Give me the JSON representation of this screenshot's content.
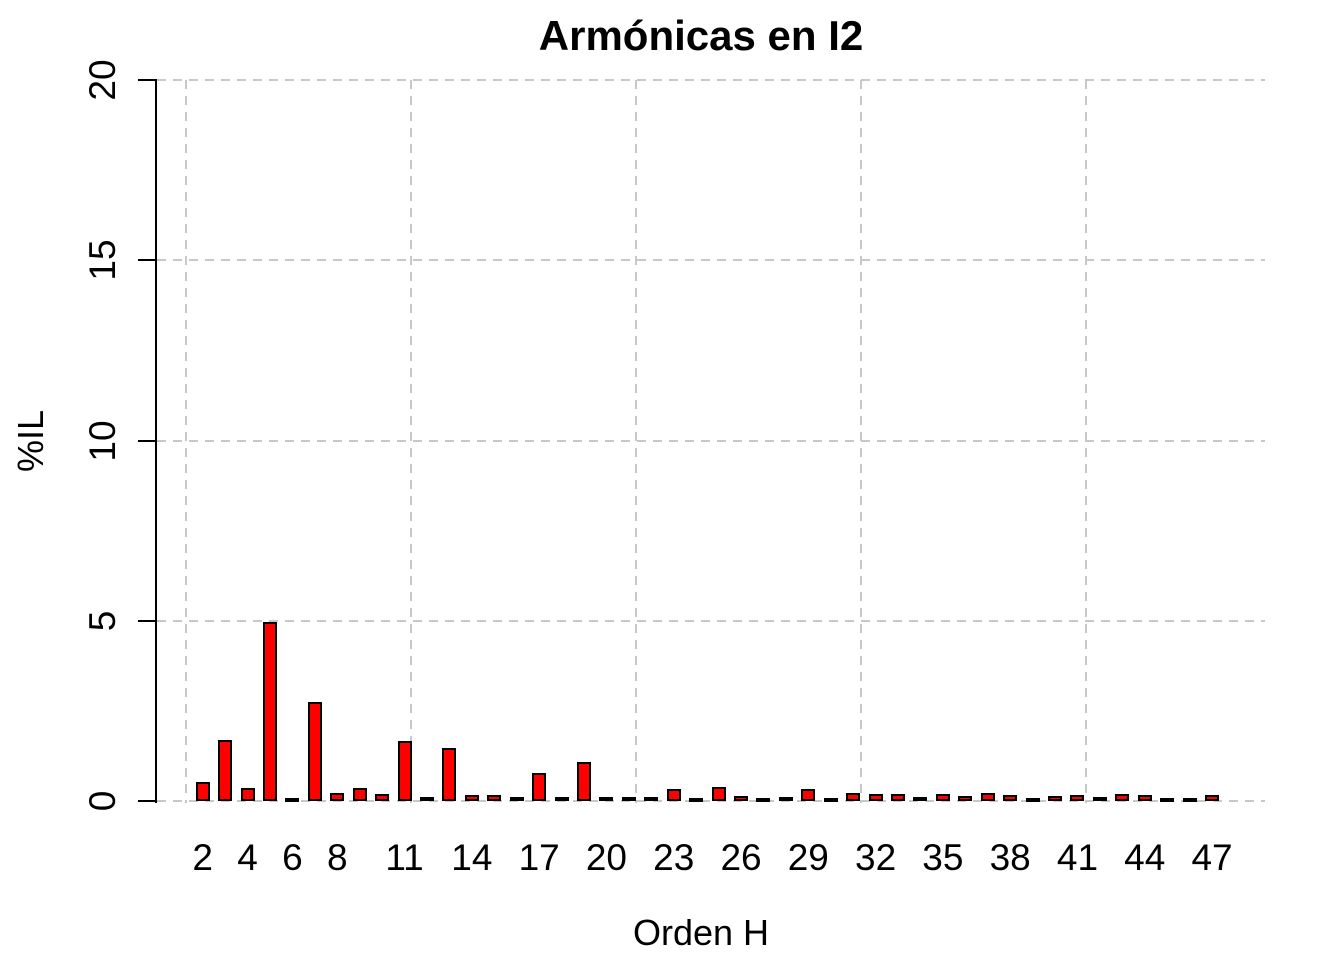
{
  "figure": {
    "title": "Armónicas en I2",
    "xlabel": "Orden H",
    "ylabel": "%IL"
  },
  "chart_data": {
    "type": "bar",
    "title": "Armónicas en I2",
    "xlabel": "Orden H",
    "ylabel": "%IL",
    "ylim": [
      0,
      20
    ],
    "yticks": [
      0,
      5,
      10,
      15,
      20
    ],
    "xticks_shown": [
      2,
      4,
      6,
      8,
      11,
      14,
      17,
      20,
      23,
      26,
      29,
      32,
      35,
      38,
      41,
      44,
      47
    ],
    "categories": [
      2,
      3,
      4,
      5,
      6,
      7,
      8,
      9,
      10,
      11,
      12,
      13,
      14,
      15,
      16,
      17,
      18,
      19,
      20,
      21,
      22,
      23,
      24,
      25,
      26,
      27,
      28,
      29,
      30,
      31,
      32,
      33,
      34,
      35,
      36,
      37,
      38,
      39,
      40,
      41,
      42,
      43,
      44,
      45,
      46,
      47
    ],
    "values": [
      0.54,
      1.69,
      0.37,
      4.96,
      0.09,
      2.75,
      0.22,
      0.35,
      0.2,
      1.67,
      0.1,
      1.46,
      0.16,
      0.18,
      0.1,
      0.79,
      0.12,
      1.09,
      0.1,
      0.1,
      0.11,
      0.33,
      0.07,
      0.4,
      0.13,
      0.06,
      0.1,
      0.32,
      0.07,
      0.21,
      0.19,
      0.19,
      0.12,
      0.19,
      0.15,
      0.21,
      0.18,
      0.08,
      0.15,
      0.17,
      0.12,
      0.19,
      0.18,
      0.06,
      0.05,
      0.16
    ],
    "bar_fill_color": "#ff0000",
    "bar_border_color": "#000000",
    "grid": "dashed",
    "grid_color": "#c8c8c8",
    "legend": "none"
  }
}
